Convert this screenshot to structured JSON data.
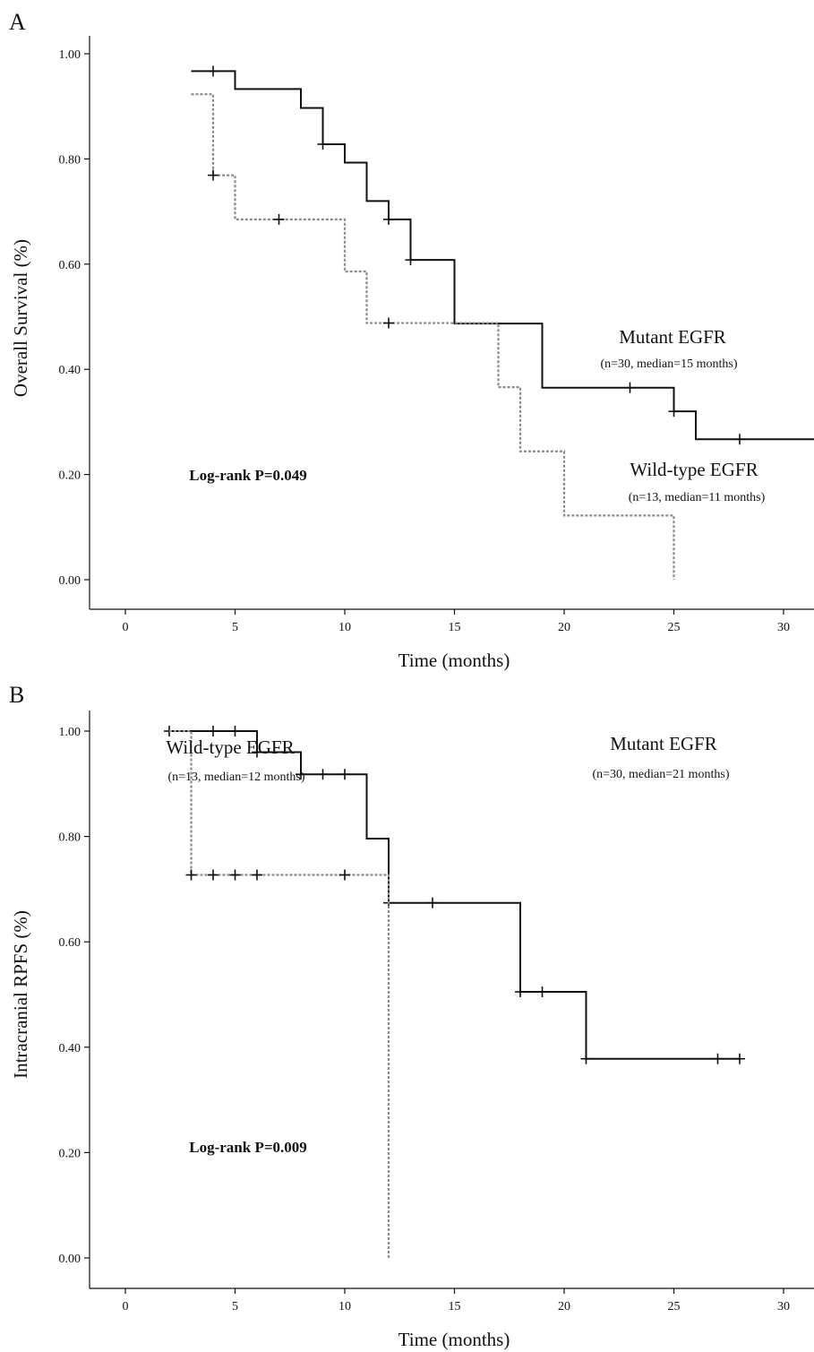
{
  "chart_data": [
    {
      "type": "line",
      "panel": "A",
      "xlabel": "Time (months)",
      "ylabel": "Overall Survival (%)",
      "xlim": [
        -1.6,
        31.5
      ],
      "ylim": [
        0,
        1
      ],
      "xticks": [
        "0",
        "5",
        "10",
        "15",
        "20",
        "25",
        "30"
      ],
      "yticks": [
        "0.00",
        "0.20",
        "0.40",
        "0.60",
        "0.80",
        "1.00"
      ],
      "grid": false,
      "series": [
        {
          "name": "Mutant EGFR",
          "style": "solid",
          "color": "#111111",
          "steps": [
            [
              3,
              0.967
            ],
            [
              5,
              0.933
            ],
            [
              8,
              0.897
            ],
            [
              9,
              0.828
            ],
            [
              10,
              0.793
            ],
            [
              11,
              0.72
            ],
            [
              12,
              0.685
            ],
            [
              13,
              0.608
            ],
            [
              15,
              0.487
            ],
            [
              19,
              0.365
            ],
            [
              25,
              0.32
            ],
            [
              26,
              0.267
            ],
            [
              31.5,
              0.267
            ]
          ],
          "censored": [
            [
              4,
              0.967
            ],
            [
              9,
              0.828
            ],
            [
              12,
              0.685
            ],
            [
              13,
              0.608
            ],
            [
              23,
              0.365
            ],
            [
              25,
              0.32
            ],
            [
              28,
              0.267
            ]
          ]
        },
        {
          "name": "Wild-type EGFR",
          "style": "dotted",
          "color": "#8a8a8a",
          "steps": [
            [
              3,
              0.923
            ],
            [
              4,
              0.769
            ],
            [
              5,
              0.685
            ],
            [
              10,
              0.586
            ],
            [
              11,
              0.488
            ],
            [
              17,
              0.366
            ],
            [
              18,
              0.244
            ],
            [
              20,
              0.122
            ],
            [
              25,
              0.0
            ]
          ],
          "censored": [
            [
              4,
              0.769
            ],
            [
              7,
              0.685
            ],
            [
              12,
              0.488
            ]
          ]
        }
      ],
      "annotations": [
        {
          "text": "Mutant EGFR",
          "kind": "main"
        },
        {
          "text": "(n=30, median=15 months)",
          "kind": "sub"
        },
        {
          "text": "Wild-type EGFR",
          "kind": "main"
        },
        {
          "text": "(n=13, median=11 months)",
          "kind": "sub"
        },
        {
          "text": "Log-rank P=0.049",
          "kind": "bold"
        }
      ]
    },
    {
      "type": "line",
      "panel": "B",
      "xlabel": "Time (months)",
      "ylabel": "Intracranial RPFS (%)",
      "xlim": [
        -1.6,
        31.5
      ],
      "ylim": [
        0,
        1
      ],
      "xticks": [
        "0",
        "5",
        "10",
        "15",
        "20",
        "25",
        "30"
      ],
      "yticks": [
        "0.00",
        "0.20",
        "0.40",
        "0.60",
        "0.80",
        "1.00"
      ],
      "grid": false,
      "series": [
        {
          "name": "Mutant EGFR",
          "style": "solid",
          "color": "#111111",
          "steps": [
            [
              2,
              1.0
            ],
            [
              6,
              0.96
            ],
            [
              8,
              0.918
            ],
            [
              11,
              0.796
            ],
            [
              12,
              0.674
            ],
            [
              18,
              0.505
            ],
            [
              21,
              0.378
            ],
            [
              28,
              0.378
            ]
          ],
          "censored": [
            [
              2,
              1.0
            ],
            [
              4,
              1.0
            ],
            [
              5,
              1.0
            ],
            [
              6,
              0.96
            ],
            [
              8,
              0.918
            ],
            [
              9,
              0.918
            ],
            [
              10,
              0.918
            ],
            [
              12,
              0.674
            ],
            [
              14,
              0.674
            ],
            [
              18,
              0.505
            ],
            [
              19,
              0.505
            ],
            [
              21,
              0.378
            ],
            [
              27,
              0.378
            ],
            [
              28,
              0.378
            ]
          ]
        },
        {
          "name": "Wild-type EGFR",
          "style": "dotted",
          "color": "#8a8a8a",
          "steps": [
            [
              2,
              1.0
            ],
            [
              3,
              0.727
            ],
            [
              12,
              0.0
            ]
          ],
          "censored": [
            [
              3,
              0.727
            ],
            [
              4,
              0.727
            ],
            [
              5,
              0.727
            ],
            [
              6,
              0.727
            ],
            [
              10,
              0.727
            ]
          ]
        }
      ],
      "annotations": [
        {
          "text": "Wild-type EGFR",
          "kind": "main"
        },
        {
          "text": "(n=13, median=12 months)",
          "kind": "sub"
        },
        {
          "text": "Mutant EGFR",
          "kind": "main"
        },
        {
          "text": "(n=30, median=21 months)",
          "kind": "sub"
        },
        {
          "text": "Log-rank P=0.009",
          "kind": "bold"
        }
      ]
    }
  ]
}
